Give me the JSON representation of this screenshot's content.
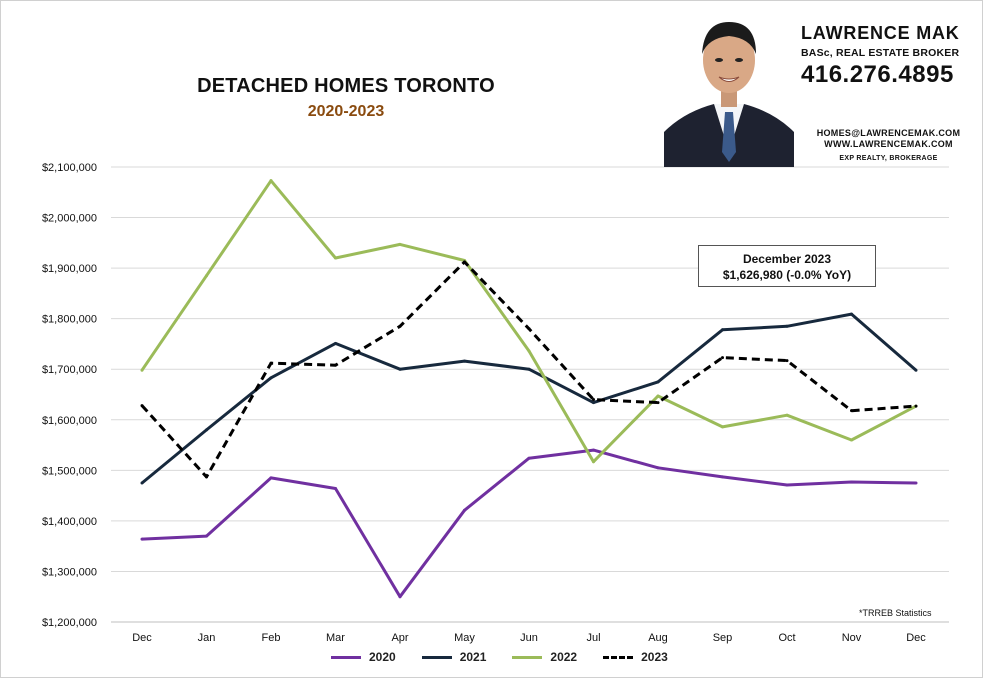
{
  "header": {
    "title": "DETACHED HOMES TORONTO",
    "subtitle": "2020-2023"
  },
  "agent": {
    "name": "LAWRENCE MAK",
    "role": "BASc, REAL ESTATE BROKER",
    "phone": "416.276.4895",
    "email": "HOMES@LAWRENCEMAK.COM",
    "website": "WWW.LAWRENCEMAK.COM",
    "brokerage": "EXP REALTY, BROKERAGE"
  },
  "callout": {
    "line1": "December 2023",
    "line2": "$1,626,980  (-0.0%  YoY)"
  },
  "source_note": "*TRREB Statistics",
  "colors": {
    "s2020": "#7030a0",
    "s2021": "#17293d",
    "s2022": "#9bbb59",
    "s2023": "#000000",
    "grid": "#d9d9d9"
  },
  "chart_data": {
    "type": "line",
    "title": "DETACHED HOMES TORONTO",
    "subtitle": "2020-2023",
    "xlabel": "",
    "ylabel": "",
    "categories": [
      "Dec",
      "Jan",
      "Feb",
      "Mar",
      "Apr",
      "May",
      "Jun",
      "Jul",
      "Aug",
      "Sep",
      "Oct",
      "Nov",
      "Dec"
    ],
    "ylim": [
      1200000,
      2100000
    ],
    "yticks": [
      1200000,
      1300000,
      1400000,
      1500000,
      1600000,
      1700000,
      1800000,
      1900000,
      2000000,
      2100000
    ],
    "ytick_labels": [
      "$1,200,000",
      "$1,300,000",
      "$1,400,000",
      "$1,500,000",
      "$1,600,000",
      "$1,700,000",
      "$1,800,000",
      "$1,900,000",
      "$2,000,000",
      "$2,100,000"
    ],
    "grid": true,
    "legend": "bottom",
    "series": [
      {
        "name": "2020",
        "color": "#7030a0",
        "dash": false,
        "values": [
          1364000,
          1370000,
          1485000,
          1464000,
          1250000,
          1421000,
          1524000,
          1540000,
          1505000,
          1487000,
          1471000,
          1477000,
          1475000
        ]
      },
      {
        "name": "2021",
        "color": "#17293d",
        "dash": false,
        "values": [
          1475000,
          1580000,
          1683000,
          1751000,
          1700000,
          1716000,
          1700000,
          1634000,
          1675000,
          1778000,
          1785000,
          1809000,
          1698000
        ]
      },
      {
        "name": "2022",
        "color": "#9bbb59",
        "dash": false,
        "values": [
          1698000,
          1885000,
          2073000,
          1920000,
          1947000,
          1915000,
          1736000,
          1517000,
          1647000,
          1586000,
          1609000,
          1560000,
          1627000
        ]
      },
      {
        "name": "2023",
        "color": "#000000",
        "dash": true,
        "values": [
          1628000,
          1487000,
          1712000,
          1708000,
          1785000,
          1912000,
          1780000,
          1640000,
          1634000,
          1723000,
          1717000,
          1618000,
          1627000
        ]
      }
    ]
  }
}
